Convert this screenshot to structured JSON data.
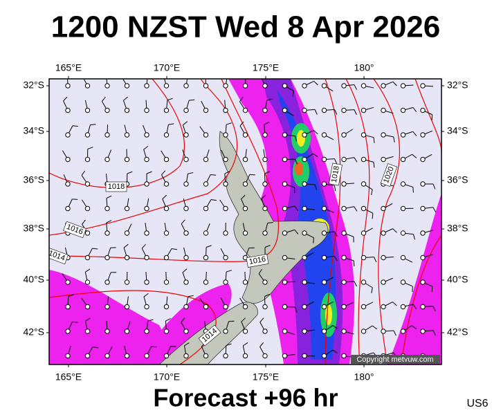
{
  "header": {
    "title": "1200 NZST Wed 8 Apr 2026"
  },
  "map": {
    "lon_labels": [
      "165°E",
      "170°E",
      "175°E",
      "180°"
    ],
    "lat_labels": [
      "32°S",
      "34°S",
      "36°S",
      "38°S",
      "40°S",
      "42°S"
    ],
    "isobar_labels": [
      "1018",
      "1016",
      "1014",
      "1018",
      "1016",
      "1014",
      "1020"
    ],
    "copyright": "Copyright metvuw.com"
  },
  "footer": {
    "forecast": "Forecast +96 hr",
    "code": "US6"
  }
}
